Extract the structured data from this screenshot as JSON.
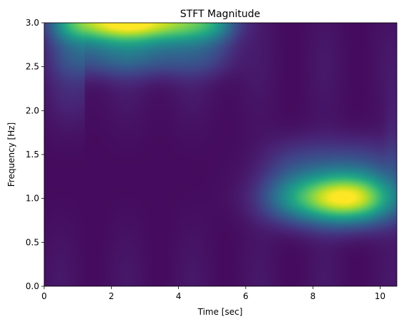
{
  "chart_data": {
    "type": "heatmap",
    "title": "STFT Magnitude",
    "xlabel": "Time [sec]",
    "ylabel": "Frequency [Hz]",
    "xlim": [
      0,
      10.5
    ],
    "ylim": [
      0,
      3.0
    ],
    "xticks": [
      0,
      2,
      4,
      6,
      8,
      10
    ],
    "xtick_labels": [
      "0",
      "2",
      "4",
      "6",
      "8",
      "10"
    ],
    "yticks": [
      0.0,
      0.5,
      1.0,
      1.5,
      2.0,
      2.5,
      3.0
    ],
    "ytick_labels": [
      "0.0",
      "0.5",
      "1.0",
      "1.5",
      "2.0",
      "2.5",
      "3.0"
    ],
    "colormap": "viridis",
    "grid": false,
    "regions": [
      {
        "t_start": 0,
        "t_end": 5.5,
        "freq_hz": 3.0,
        "peak_time": 2.5,
        "level": 1.0
      },
      {
        "t_start": 6.0,
        "t_end": 10.5,
        "freq_hz": 1.0,
        "peak_time": 9.0,
        "level": 1.0
      }
    ]
  }
}
